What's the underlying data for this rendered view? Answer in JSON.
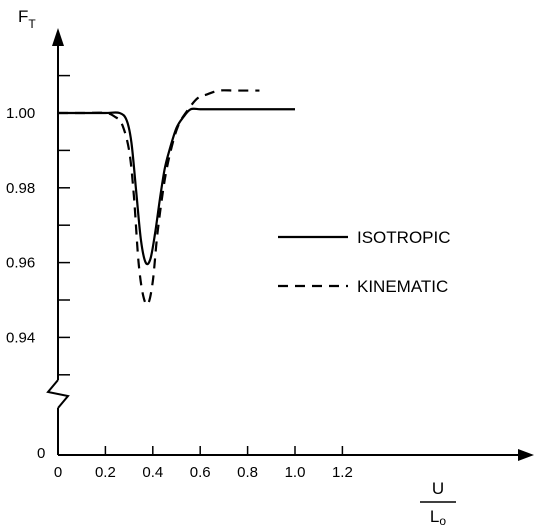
{
  "chart_data": {
    "type": "line",
    "title": "",
    "ylabel": {
      "main": "F",
      "sub": "T"
    },
    "xlabel": {
      "numerator": "U",
      "denominator": "L",
      "denominator_sub": "o"
    },
    "xlim": [
      0,
      1.25
    ],
    "ylim": [
      0.92,
      1.02
    ],
    "x_ticks": [
      0,
      0.2,
      0.4,
      0.6,
      0.8,
      1.0,
      1.2
    ],
    "x_tick_labels": [
      "0",
      "0.2",
      "0.4",
      "0.6",
      "0.8",
      "1.0",
      "1.2"
    ],
    "y_ticks": [
      0.94,
      0.96,
      0.98,
      1.0
    ],
    "y_tick_labels": [
      "0.94",
      "0.96",
      "0.98",
      "1.00"
    ],
    "y_minor_ticks": [
      0.93,
      0.95,
      0.97,
      0.99,
      1.01
    ],
    "y_origin_label": "0",
    "axis_break": true,
    "grid": false,
    "legend": {
      "placement": "right",
      "entries": [
        {
          "label": "ISOTROPIC",
          "style": "solid"
        },
        {
          "label": "KINEMATIC",
          "style": "dashed"
        }
      ]
    },
    "series": [
      {
        "name": "ISOTROPIC",
        "style": "solid",
        "x": [
          0,
          0.1,
          0.2,
          0.26,
          0.29,
          0.31,
          0.33,
          0.35,
          0.37,
          0.39,
          0.41,
          0.43,
          0.45,
          0.47,
          0.5,
          0.53,
          0.56,
          0.6,
          0.65,
          0.7,
          0.8,
          0.9,
          1.0
        ],
        "y": [
          1.0,
          1.0,
          1.0,
          1.0,
          0.998,
          0.992,
          0.979,
          0.966,
          0.96,
          0.961,
          0.968,
          0.977,
          0.985,
          0.99,
          0.996,
          0.999,
          1.001,
          1.001,
          1.001,
          1.001,
          1.001,
          1.001,
          1.001
        ]
      },
      {
        "name": "KINEMATIC",
        "style": "dashed",
        "x": [
          0,
          0.1,
          0.2,
          0.24,
          0.27,
          0.3,
          0.32,
          0.34,
          0.36,
          0.38,
          0.4,
          0.42,
          0.45,
          0.48,
          0.51,
          0.55,
          0.59,
          0.63,
          0.68,
          0.75,
          0.85
        ],
        "y": [
          1.0,
          1.0,
          1.0,
          0.999,
          0.997,
          0.99,
          0.978,
          0.96,
          0.951,
          0.949,
          0.955,
          0.968,
          0.982,
          0.991,
          0.997,
          1.001,
          1.004,
          1.005,
          1.006,
          1.006,
          1.006
        ]
      }
    ]
  }
}
